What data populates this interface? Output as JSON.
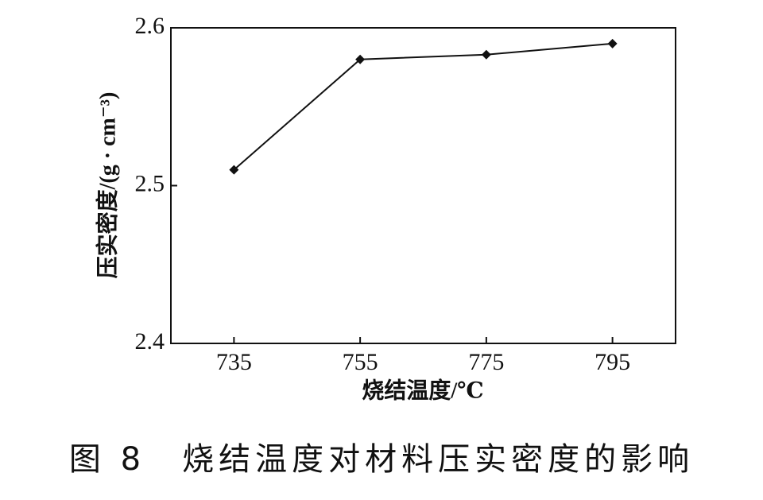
{
  "chart_data": {
    "type": "line",
    "xlabel": "烧结温度/℃",
    "ylabel": "压实密度/(g · cm⁻³)",
    "caption": "图 8　烧结温度对材料压实密度的影响",
    "x": [
      735,
      755,
      775,
      795
    ],
    "values": [
      2.51,
      2.58,
      2.583,
      2.59
    ],
    "color": "#111111",
    "xlim": [
      725,
      805
    ],
    "xticks": [
      735,
      755,
      775,
      795
    ],
    "ylim": [
      2.4,
      2.6
    ],
    "yticks": [
      2.4,
      2.5,
      2.6
    ],
    "grid": false
  }
}
